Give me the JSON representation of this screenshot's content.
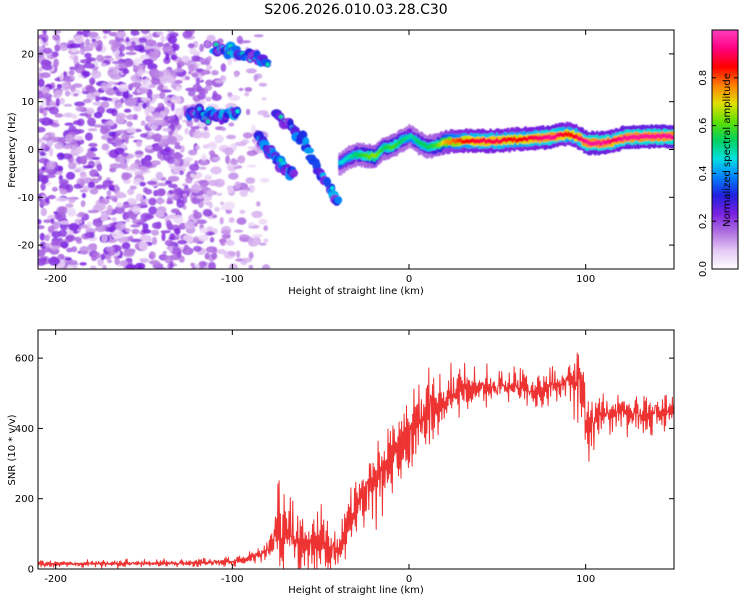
{
  "figure": {
    "title": "S206.2026.010.03.28.C30"
  },
  "chart_data": [
    {
      "type": "heatmap",
      "title": "S206.2026.010.03.28.C30",
      "xlabel": "Height of straight line (km)",
      "ylabel": "Frequency (Hz)",
      "xlim": [
        -210,
        150
      ],
      "ylim": [
        -25,
        25
      ],
      "xticks": [
        -200,
        -100,
        0,
        100
      ],
      "yticks": [
        -20,
        -10,
        0,
        10,
        20
      ],
      "xtick_labels": [
        "-200",
        "-100",
        "0",
        "100"
      ],
      "ytick_labels": [
        "-20",
        "-10",
        "0",
        "10",
        "20"
      ],
      "colorbar": {
        "label": "Normalized spectral amplitude",
        "range": [
          0.0,
          1.0
        ],
        "ticks": [
          0.0,
          0.2,
          0.4,
          0.6,
          0.8
        ],
        "tick_labels": [
          "0.0",
          "0.2",
          "0.4",
          "0.6",
          "0.8"
        ],
        "colors": [
          "#ffffff",
          "#e4c8f4",
          "#b070e0",
          "#7a20e0",
          "#2020e0",
          "#0080ff",
          "#00e0e0",
          "#00d060",
          "#60e000",
          "#e0e000",
          "#ff8000",
          "#ff0000",
          "#ff0080",
          "#ff40c0"
        ]
      },
      "ridge": {
        "description_free": true,
        "x": [
          -40,
          -35,
          -30,
          -25,
          -20,
          -15,
          -10,
          -5,
          0,
          5,
          10,
          15,
          20,
          30,
          40,
          50,
          60,
          70,
          80,
          85,
          90,
          95,
          100,
          110,
          115,
          120,
          130,
          140,
          150
        ],
        "freq": [
          -3.0,
          -1.8,
          -1.0,
          -1.3,
          -1.5,
          0.3,
          0.6,
          1.8,
          2.8,
          1.4,
          0.6,
          0.8,
          1.6,
          1.8,
          1.8,
          1.8,
          2.1,
          2.3,
          2.6,
          3.0,
          3.2,
          2.6,
          1.4,
          1.4,
          1.7,
          2.4,
          2.6,
          2.7,
          2.7
        ],
        "amplitude": [
          0.45,
          0.5,
          0.55,
          0.6,
          0.65,
          0.55,
          0.6,
          0.55,
          0.5,
          0.55,
          0.55,
          0.6,
          0.75,
          0.85,
          0.9,
          0.9,
          0.85,
          0.9,
          0.95,
          0.9,
          0.85,
          0.9,
          0.95,
          0.95,
          0.9,
          0.95,
          0.95,
          0.95,
          0.95
        ]
      },
      "diagonal_traces": [
        {
          "x": [
            -110,
            -100,
            -92,
            -85,
            -80
          ],
          "freq": [
            21,
            20.5,
            19.5,
            19,
            18
          ]
        },
        {
          "x": [
            -75,
            -70,
            -65,
            -60,
            -55,
            -50,
            -45,
            -40
          ],
          "freq": [
            8,
            6,
            4,
            2,
            -2,
            -5,
            -8,
            -11
          ]
        },
        {
          "x": [
            -85,
            -80,
            -75,
            -70,
            -65
          ],
          "freq": [
            2,
            0,
            -2,
            -4,
            -5
          ]
        },
        {
          "x": [
            -125,
            -115,
            -105,
            -97
          ],
          "freq": [
            8,
            7,
            7,
            8
          ]
        }
      ]
    },
    {
      "type": "line",
      "title": "",
      "xlabel": "Height of straight line (km)",
      "ylabel": "SNR (10 * v/v)",
      "xlim": [
        -210,
        150
      ],
      "ylim": [
        0,
        680
      ],
      "xticks": [
        -200,
        -100,
        0,
        100
      ],
      "yticks": [
        0,
        200,
        400,
        600
      ],
      "xtick_labels": [
        "-200",
        "-100",
        "0",
        "100"
      ],
      "ytick_labels": [
        "0",
        "200",
        "400",
        "600"
      ],
      "series": [
        {
          "name": "SNR",
          "color": "#ee3333",
          "x": [
            -210,
            -150,
            -110,
            -100,
            -90,
            -80,
            -75,
            -70,
            -65,
            -60,
            -55,
            -50,
            -45,
            -40,
            -35,
            -30,
            -25,
            -20,
            -10,
            0,
            10,
            20,
            30,
            40,
            60,
            70,
            80,
            90,
            95,
            98,
            100,
            105,
            110,
            120,
            130,
            140,
            150
          ],
          "mean": [
            15,
            15,
            18,
            22,
            30,
            55,
            90,
            100,
            80,
            70,
            75,
            70,
            60,
            55,
            120,
            175,
            230,
            260,
            330,
            380,
            440,
            480,
            510,
            520,
            520,
            500,
            520,
            530,
            520,
            560,
            420,
            420,
            440,
            450,
            440,
            440,
            450
          ],
          "spread": [
            8,
            8,
            8,
            10,
            15,
            40,
            100,
            120,
            100,
            80,
            80,
            80,
            70,
            60,
            80,
            80,
            90,
            100,
            110,
            100,
            90,
            60,
            50,
            45,
            45,
            45,
            45,
            45,
            80,
            100,
            90,
            55,
            50,
            50,
            45,
            40,
            40
          ]
        }
      ]
    }
  ]
}
